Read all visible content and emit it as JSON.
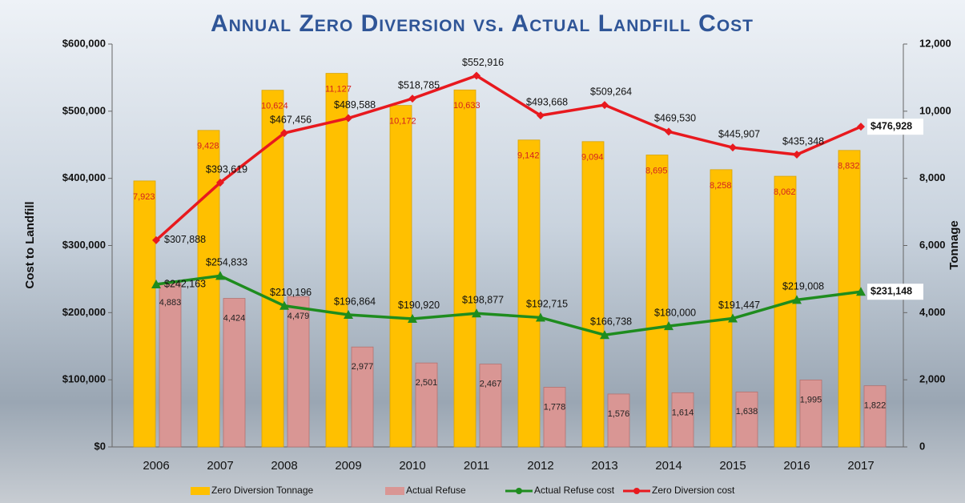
{
  "chart_data": {
    "type": "bar",
    "title": "Annual Zero Diversion vs. Actual Landfill Cost",
    "y_label": "Cost to Landfill",
    "y2_label": "Tonnage",
    "categories": [
      "2006",
      "2007",
      "2008",
      "2009",
      "2010",
      "2011",
      "2012",
      "2013",
      "2014",
      "2015",
      "2016",
      "2017"
    ],
    "ylim": [
      0,
      600000
    ],
    "yticks": [
      {
        "value": 0,
        "label": "$0"
      },
      {
        "value": 100000,
        "label": "$100,000"
      },
      {
        "value": 200000,
        "label": "$200,000"
      },
      {
        "value": 300000,
        "label": "$300,000"
      },
      {
        "value": 400000,
        "label": "$400,000"
      },
      {
        "value": 500000,
        "label": "$500,000"
      },
      {
        "value": 600000,
        "label": "$600,000"
      }
    ],
    "y2lim": [
      0,
      12000
    ],
    "y2ticks": [
      0,
      {
        "value": 2000,
        "label": "2,000"
      },
      {
        "value": 4000,
        "label": "4,000"
      },
      {
        "value": 6000,
        "label": "6,000"
      },
      {
        "value": 8000,
        "label": "8,000"
      },
      {
        "value": 10000,
        "label": "10,000"
      },
      {
        "value": 12000,
        "label": "12,000"
      }
    ],
    "grid": false,
    "legend": "bottom",
    "series": [
      {
        "name": "Zero Diversion Tonnage",
        "type": "bar",
        "axis": "y2",
        "color": "#ffc000",
        "values": [
          7923,
          9428,
          10624,
          11127,
          10172,
          10633,
          9142,
          9094,
          8695,
          8258,
          8062,
          8832
        ],
        "value_labels": [
          "7,923",
          "9,428",
          "10,624",
          "11,127",
          "10,172",
          "10,633",
          "9,142",
          "9,094",
          "8,695",
          "8,258",
          "8,062",
          "8,832"
        ]
      },
      {
        "name": "Actual Refuse",
        "type": "bar",
        "axis": "y2",
        "color": "#d99694",
        "values": [
          4883,
          4424,
          4479,
          2977,
          2501,
          2467,
          1778,
          1576,
          1614,
          1638,
          1995,
          1822
        ],
        "value_labels": [
          "4,883",
          "4,424",
          "4,479",
          "2,977",
          "2,501",
          "2,467",
          "1,778",
          "1,576",
          "1,614",
          "1,638",
          "1,995",
          "1,822"
        ]
      },
      {
        "name": "Actual Refuse cost",
        "type": "line",
        "color": "#1e8c1e",
        "values": [
          242163,
          254833,
          210196,
          196864,
          190920,
          198877,
          192715,
          166738,
          180000,
          191447,
          219008,
          231148
        ],
        "value_labels": [
          "$242,163",
          "$254,833",
          "$210,196",
          "$196,864",
          "$190,920",
          "$198,877",
          "$192,715",
          "$166,738",
          "$180,000",
          "$191,447",
          "$219,008",
          "$231,148"
        ]
      },
      {
        "name": "Zero Diversion cost",
        "type": "line",
        "color": "#e8191e",
        "values": [
          307888,
          393619,
          467456,
          489588,
          518785,
          552916,
          493668,
          509264,
          469530,
          445907,
          435348,
          476928
        ],
        "value_labels": [
          "$307,888",
          "$393,619",
          "$467,456",
          "$489,588",
          "$518,785",
          "$552,916",
          "$493,668",
          "$509,264",
          "$469,530",
          "$445,907",
          "$435,348",
          "$476,928"
        ]
      }
    ]
  }
}
